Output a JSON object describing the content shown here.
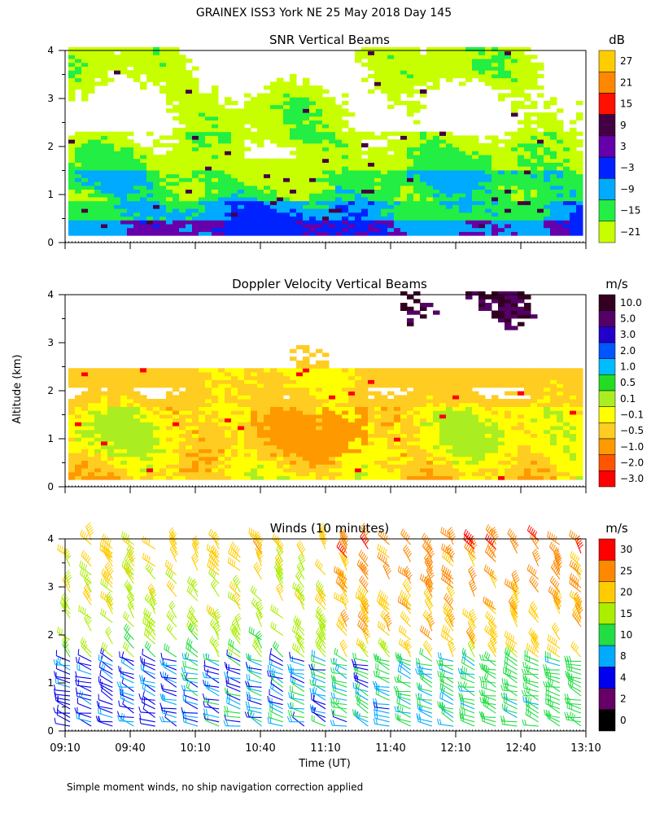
{
  "page": {
    "title": "GRAINEX ISS3 York NE  25 May 2018 Day 145",
    "ylabel": "Altitude (km)",
    "xlabel": "Time (UT)",
    "footnote": "Simple moment winds, no ship navigation correction applied"
  },
  "chart_data": [
    {
      "type": "heatmap",
      "title": "SNR Vertical Beams",
      "ylabel": "Altitude (km)",
      "x_range_hours": [
        9.1667,
        13.1667
      ],
      "x_ticks": [
        "09:10",
        "09:40",
        "10:10",
        "10:40",
        "11:10",
        "11:40",
        "12:10",
        "12:40",
        "13:10"
      ],
      "ylim": [
        0,
        4
      ],
      "y_ticks": [
        "0",
        "1",
        "2",
        "3",
        "4"
      ],
      "colorbar": {
        "unit": "dB",
        "labels": [
          "27",
          "21",
          "15",
          "9",
          "3",
          "−3",
          "−9",
          "−15",
          "−21"
        ],
        "colors": [
          "#ffcc00",
          "#ff8800",
          "#ff1100",
          "#440044",
          "#6600aa",
          "#0022ff",
          "#00aaff",
          "#22ee44",
          "#c8ff00"
        ]
      },
      "features": "SNR decreases with altitude; strongest (3 to 9 dB) below 0.7 km; moderate -9 to -3 dB band 0.7-1.5 km; broken -15 to -21 dB returns 1.5-4 km"
    },
    {
      "type": "heatmap",
      "title": "Doppler Velocity Vertical Beams",
      "ylabel": "Altitude (km)",
      "x_range_hours": [
        9.1667,
        13.1667
      ],
      "x_ticks": [
        "09:10",
        "09:40",
        "10:10",
        "10:40",
        "11:10",
        "11:40",
        "12:10",
        "12:40",
        "13:10"
      ],
      "ylim": [
        0,
        4
      ],
      "y_ticks": [
        "0",
        "1",
        "2",
        "3",
        "4"
      ],
      "colorbar": {
        "unit": "m/s",
        "labels": [
          "10.0",
          "5.0",
          "3.0",
          "2.0",
          "1.0",
          "0.5",
          "0.1",
          "−0.1",
          "−0.5",
          "−1.0",
          "−2.0",
          "−3.0"
        ],
        "colors": [
          "#330022",
          "#550066",
          "#2200cc",
          "#0055ff",
          "#00bbff",
          "#22dd22",
          "#aaee22",
          "#ffff00",
          "#ffcc22",
          "#ff9900",
          "#ff5500",
          "#ff0000"
        ]
      },
      "features": "Mostly -0.1 to -0.5 m/s (yellow-orange) below 2.3 km with downward pockets near 11:00-11:10; sparse data above 2.5 km; scattered 5-10 m/s pixels near 3.5-4 km after 11:30"
    },
    {
      "type": "scatter",
      "title": "Winds (10 minutes)",
      "ylabel": "Altitude (km)",
      "xlabel": "Time (UT)",
      "x_range_hours": [
        9.1667,
        13.1667
      ],
      "x_ticks": [
        "09:10",
        "09:40",
        "10:10",
        "10:40",
        "11:10",
        "11:40",
        "12:10",
        "12:40",
        "13:10"
      ],
      "ylim": [
        0,
        4
      ],
      "y_ticks": [
        "0",
        "1",
        "2",
        "3",
        "4"
      ],
      "wind_barb_interval_min": 10,
      "colorbar": {
        "unit": "m/s",
        "labels": [
          "30",
          "25",
          "20",
          "15",
          "10",
          "8",
          "4",
          "2",
          "0"
        ],
        "colors": [
          "#ff0000",
          "#ff8800",
          "#ffcc00",
          "#aaee00",
          "#22dd44",
          "#00aaff",
          "#0000ee",
          "#660066",
          "#000000"
        ]
      },
      "features": "Wind barbs every 10 min; speeds 4-8 m/s below 1.5 km early, increasing to 10-20 m/s later; stronger 20-30 m/s winds above 2.5 km after 11:30"
    }
  ]
}
